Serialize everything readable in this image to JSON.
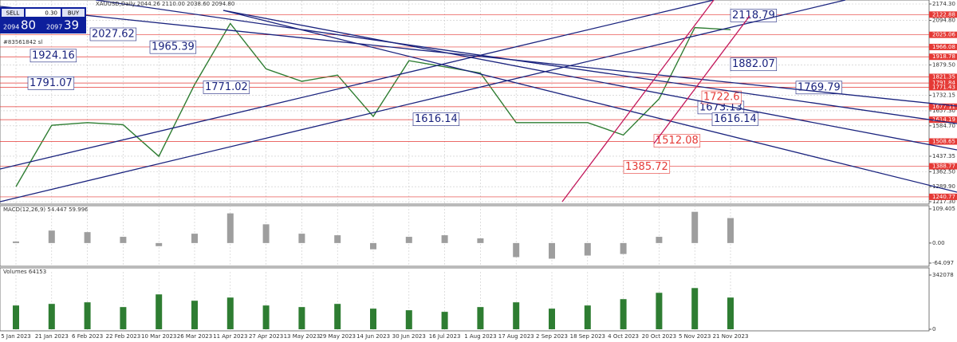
{
  "terminal": {
    "sell": "SELL",
    "buy": "BUY",
    "lot": "0.30",
    "sell_price_main": "2094",
    "sell_price_pips": "80",
    "buy_price_main": "2097",
    "buy_price_pips": "39",
    "order_label": "#83561842 sl"
  },
  "chart_data": [
    {
      "type": "line",
      "title": "XAUUSD,Daily  2044.26 2110.00 2038.60 2094.80",
      "categories": [
        "5 Jan 2023",
        "21 Jan 2023",
        "6 Feb 2023",
        "22 Feb 2023",
        "10 Mar 2023",
        "26 Mar 2023",
        "11 Apr 2023",
        "27 Apr 2023",
        "13 May 2023",
        "29 May 2023",
        "14 Jun 2023",
        "30 Jun 2023",
        "16 Jul 2023",
        "1 Aug 2023",
        "17 Aug 2023",
        "2 Sep 2023",
        "18 Sep 2023",
        "4 Oct 2023",
        "20 Oct 2023",
        "5 Nov 2023",
        "21 Nov 2023"
      ],
      "values": [
        1290,
        1587,
        1600,
        1590,
        1437,
        1784,
        2080,
        1860,
        1800,
        1830,
        1630,
        1900,
        1870,
        1840,
        1600,
        1600,
        1600,
        1540,
        1715,
        2060,
        2050
      ],
      "color": "#2e7d32",
      "ylim": [
        1217.3,
        2174.3
      ],
      "yticks": [
        {
          "value": 2174.3,
          "label": "2174.30"
        },
        {
          "value": 2094.8,
          "label": "2094.80"
        },
        {
          "value": 1879.5,
          "label": "1879.50"
        },
        1732.15,
        {
          "value": 1657.3,
          "label": "1657.30"
        },
        {
          "value": 1584.7,
          "label": "1584.70"
        },
        1437.35,
        {
          "value": 1362.5,
          "label": "1362.50"
        },
        {
          "value": 1289.9,
          "label": "1289.90"
        },
        {
          "value": 1217.3,
          "label": "1217.30"
        }
      ],
      "levels": [
        2122.88,
        2025.06,
        1966.08,
        1918.78,
        1821.35,
        1791.84,
        1771.43,
        1677.11,
        1614.19,
        1508.65,
        1388.77,
        1240.77
      ],
      "level_color": "#e53935",
      "annotations": [
        {
          "value": 2027.62,
          "color": "#1a237e"
        },
        {
          "value": 1965.39,
          "color": "#1a237e"
        },
        {
          "value": 1924.16,
          "color": "#1a237e"
        },
        {
          "value": 1791.07,
          "color": "#1a237e"
        },
        {
          "value": 1771.02,
          "color": "#1a237e"
        },
        {
          "value": 1616.14,
          "color": "#1a237e"
        },
        {
          "value": 2118.79,
          "color": "#1a237e"
        },
        {
          "value": 1882.07,
          "color": "#1a237e"
        },
        {
          "value": 1769.79,
          "color": "#1a237e"
        },
        {
          "value": 1673.13,
          "color": "#1a237e"
        },
        {
          "value": 1722.6,
          "color": "#e53935"
        },
        {
          "value": 1616.14,
          "color": "#1a237e"
        },
        {
          "value": 1512.08,
          "color": "#e53935"
        },
        {
          "value": 1385.72,
          "color": "#e53935"
        }
      ],
      "grid": true
    },
    {
      "type": "bar",
      "title": "MACD(12,26,9) 54.447 59.996",
      "values": [
        5,
        40,
        35,
        20,
        -10,
        30,
        95,
        60,
        30,
        25,
        -20,
        20,
        25,
        15,
        -45,
        -50,
        -40,
        -35,
        20,
        100,
        80
      ],
      "color": "#9e9e9e",
      "ylim": [
        -64.097,
        109.405
      ],
      "yticks": [
        109.405,
        {
          "value": 0,
          "label": "0.00"
        },
        -64.097
      ]
    },
    {
      "type": "bar",
      "title": "Volumes 64153",
      "values": [
        150000,
        160000,
        170000,
        140000,
        220000,
        180000,
        200000,
        150000,
        140000,
        160000,
        130000,
        120000,
        110000,
        140000,
        170000,
        130000,
        150000,
        190000,
        230000,
        260000,
        200000
      ],
      "color": "#2e7d32",
      "ylim": [
        0,
        342078
      ],
      "yticks": [
        342078,
        0
      ]
    }
  ]
}
